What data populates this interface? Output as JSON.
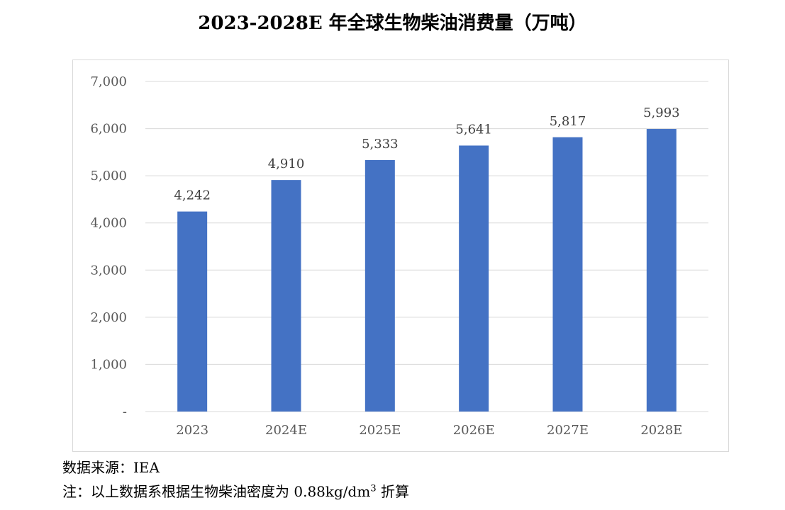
{
  "title": "2023-2028E 年全球生物柴油消费量（万吨）",
  "source": "数据来源：IEA",
  "note": {
    "prefix": "注：以上数据系根据生物柴油密度为 0.88kg/dm",
    "superscript": "3",
    "suffix": " 折算"
  },
  "bar_color": "#4472C4",
  "chart_data": {
    "type": "bar",
    "title": "2023-2028E 年全球生物柴油消费量（万吨）",
    "categories": [
      "2023",
      "2024E",
      "2025E",
      "2026E",
      "2027E",
      "2028E"
    ],
    "values": [
      4242,
      4910,
      5333,
      5641,
      5817,
      5993
    ],
    "value_labels": [
      "4,242",
      "4,910",
      "5,333",
      "5,641",
      "5,817",
      "5,993"
    ],
    "ylim": [
      0,
      7000
    ],
    "yticks": [
      0,
      1000,
      2000,
      3000,
      4000,
      5000,
      6000,
      7000
    ],
    "ytick_labels": [
      "-",
      "1,000",
      "2,000",
      "3,000",
      "4,000",
      "5,000",
      "6,000",
      "7,000"
    ],
    "xlabel": "",
    "ylabel": "",
    "grid": true,
    "legend": "none"
  }
}
